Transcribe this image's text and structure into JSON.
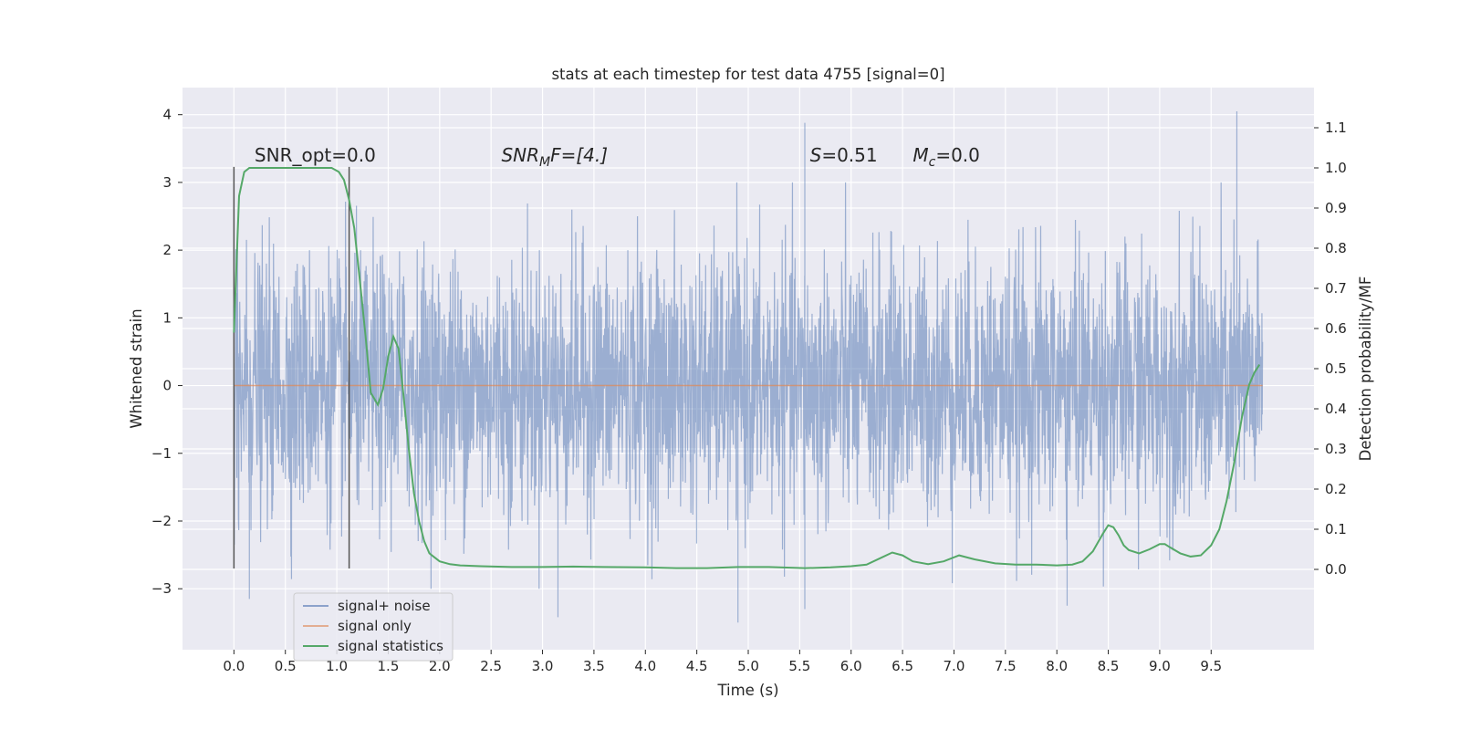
{
  "chart_data": {
    "type": "line",
    "title": "stats at each timestep for test data 4755 [signal=0]",
    "xlabel": "Time (s)",
    "ylabel": "Whitened strain",
    "y2label": "Detection probability/MF",
    "xlim": [
      -0.5,
      10.5
    ],
    "ylim": [
      -3.9,
      4.4
    ],
    "y2lim": [
      -0.2,
      1.2
    ],
    "x_ticks": [
      0.0,
      0.5,
      1.0,
      1.5,
      2.0,
      2.5,
      3.0,
      3.5,
      4.0,
      4.5,
      5.0,
      5.5,
      6.0,
      6.5,
      7.0,
      7.5,
      8.0,
      8.5,
      9.0,
      9.5
    ],
    "x_tick_labels": [
      "0.0",
      "0.5",
      "1.0",
      "1.5",
      "2.0",
      "2.5",
      "3.0",
      "3.5",
      "4.0",
      "4.5",
      "5.0",
      "5.5",
      "6.0",
      "6.5",
      "7.0",
      "7.5",
      "8.0",
      "8.5",
      "9.0",
      "9.5"
    ],
    "y_ticks": [
      -3,
      -2,
      -1,
      0,
      1,
      2,
      3,
      4
    ],
    "y_tick_labels": [
      "−3",
      "−2",
      "−1",
      "0",
      "1",
      "2",
      "3",
      "4"
    ],
    "y2_ticks": [
      0.0,
      0.1,
      0.2,
      0.3,
      0.4,
      0.5,
      0.6,
      0.7,
      0.8,
      0.9,
      1.0,
      1.1
    ],
    "y2_tick_labels": [
      "0.0",
      "0.1",
      "0.2",
      "0.3",
      "0.4",
      "0.5",
      "0.6",
      "0.7",
      "0.8",
      "0.9",
      "1.0",
      "1.1"
    ],
    "grid": true,
    "legend_position": "lower-left",
    "series": [
      {
        "name": "signal+ noise",
        "color": "#4c72b0",
        "axis": "left",
        "x_range": [
          0.0,
          10.0
        ],
        "typical_amplitude": 1.0,
        "min_observed": -3.5,
        "max_observed": 4.05,
        "notable_spikes": [
          {
            "x": 5.55,
            "y": 3.88
          },
          {
            "x": 9.75,
            "y": 4.05
          },
          {
            "x": 0.15,
            "y": -3.15
          },
          {
            "x": 3.15,
            "y": -3.42
          },
          {
            "x": 4.9,
            "y": -3.5
          },
          {
            "x": 5.55,
            "y": -3.3
          },
          {
            "x": 8.1,
            "y": -3.25
          }
        ]
      },
      {
        "name": "signal only",
        "color": "#dd8452",
        "axis": "left",
        "x": [
          0.0,
          10.0
        ],
        "y": [
          0.0,
          0.0
        ]
      },
      {
        "name": "signal statistics",
        "color": "#55a868",
        "axis": "right",
        "x": [
          0.0,
          0.05,
          0.1,
          0.15,
          0.25,
          0.4,
          0.6,
          0.8,
          0.95,
          1.02,
          1.07,
          1.12,
          1.17,
          1.22,
          1.28,
          1.33,
          1.4,
          1.45,
          1.5,
          1.55,
          1.6,
          1.65,
          1.7,
          1.75,
          1.8,
          1.85,
          1.9,
          1.95,
          2.0,
          2.1,
          2.2,
          2.4,
          2.7,
          3.0,
          3.3,
          3.6,
          4.0,
          4.3,
          4.6,
          4.9,
          5.2,
          5.55,
          5.8,
          6.0,
          6.15,
          6.3,
          6.4,
          6.5,
          6.6,
          6.75,
          6.9,
          7.05,
          7.2,
          7.4,
          7.6,
          7.8,
          8.0,
          8.15,
          8.25,
          8.35,
          8.45,
          8.5,
          8.55,
          8.6,
          8.65,
          8.7,
          8.8,
          8.9,
          9.0,
          9.05,
          9.1,
          9.2,
          9.3,
          9.4,
          9.5,
          9.58,
          9.65,
          9.72,
          9.8,
          9.87,
          9.92,
          9.97
        ],
        "y": [
          0.59,
          0.93,
          0.99,
          1.0,
          1.0,
          1.0,
          1.0,
          1.0,
          1.0,
          0.99,
          0.97,
          0.92,
          0.85,
          0.73,
          0.58,
          0.44,
          0.41,
          0.45,
          0.53,
          0.58,
          0.55,
          0.43,
          0.3,
          0.19,
          0.12,
          0.07,
          0.04,
          0.03,
          0.02,
          0.013,
          0.01,
          0.008,
          0.006,
          0.006,
          0.007,
          0.006,
          0.005,
          0.003,
          0.003,
          0.006,
          0.006,
          0.003,
          0.005,
          0.008,
          0.012,
          0.03,
          0.042,
          0.035,
          0.02,
          0.013,
          0.02,
          0.035,
          0.025,
          0.015,
          0.012,
          0.012,
          0.01,
          0.012,
          0.02,
          0.045,
          0.09,
          0.11,
          0.105,
          0.085,
          0.06,
          0.048,
          0.04,
          0.05,
          0.063,
          0.063,
          0.055,
          0.04,
          0.032,
          0.035,
          0.06,
          0.1,
          0.17,
          0.26,
          0.38,
          0.46,
          0.49,
          0.51
        ]
      }
    ],
    "vertical_lines": [
      {
        "x": 0.0,
        "y_range": [
          -2.7,
          3.23
        ],
        "color": "#555555"
      },
      {
        "x": 1.12,
        "y_range": [
          -2.7,
          3.23
        ],
        "color": "#555555"
      }
    ],
    "annotations": [
      {
        "id": "snr_opt",
        "x": 0.2,
        "y": 3.23,
        "text": "SNR_opt=0.0"
      },
      {
        "id": "snr_mf",
        "x": 2.6,
        "y": 3.23,
        "main": "SNR",
        "sub": "M",
        "rest": "F=[4.]"
      },
      {
        "id": "s_val",
        "x": 5.6,
        "y": 3.23,
        "main": "S",
        "rest": "=0.51"
      },
      {
        "id": "mc_val",
        "x": 6.6,
        "y": 3.23,
        "main": "M",
        "sub": "c",
        "rest": "=0.0"
      }
    ]
  }
}
